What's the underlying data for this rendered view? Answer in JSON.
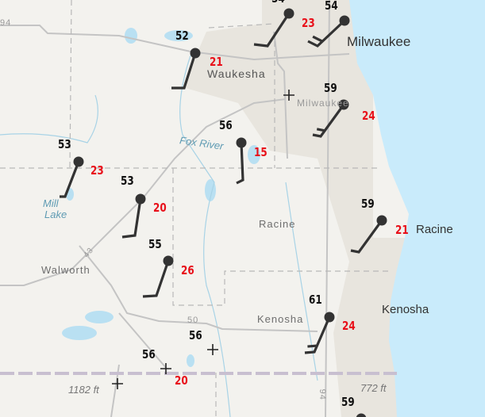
{
  "colors": {
    "land": "#f3f2ee",
    "urban": "#e6e3dc",
    "lake": "#c9ebfb",
    "temperature": "#111111",
    "dewpoint": "#e8101a",
    "barb": "#333333"
  },
  "places": [
    {
      "text": "Milwaukee",
      "kind": "city"
    },
    {
      "text": "Waukesha",
      "kind": "county"
    },
    {
      "text": "Milwaukee",
      "kind": "county"
    },
    {
      "text": "Fox River",
      "kind": "water"
    },
    {
      "text": "Mill",
      "kind": "water"
    },
    {
      "text": "Lake",
      "kind": "water"
    },
    {
      "text": "Racine",
      "kind": "county"
    },
    {
      "text": "Racine",
      "kind": "city"
    },
    {
      "text": "Walworth",
      "kind": "county"
    },
    {
      "text": "Kenosha",
      "kind": "county"
    },
    {
      "text": "Kenosha",
      "kind": "city"
    },
    {
      "text": "50",
      "kind": "road"
    },
    {
      "text": "94",
      "kind": "road"
    },
    {
      "text": "94",
      "kind": "road"
    },
    {
      "text": "43",
      "kind": "road"
    },
    {
      "text": "1182 ft",
      "kind": "elevation"
    },
    {
      "text": "772 ft",
      "kind": "elevation"
    }
  ],
  "stations": [
    {
      "temp": "54",
      "dew": "23"
    },
    {
      "temp": "54",
      "dew": ""
    },
    {
      "temp": "52",
      "dew": "21"
    },
    {
      "temp": "59",
      "dew": "24"
    },
    {
      "temp": "56",
      "dew": "15"
    },
    {
      "temp": "53",
      "dew": "23"
    },
    {
      "temp": "53",
      "dew": "20"
    },
    {
      "temp": "55",
      "dew": "26"
    },
    {
      "temp": "59",
      "dew": "21"
    },
    {
      "temp": "61",
      "dew": "24"
    },
    {
      "temp": "56",
      "dew": ""
    },
    {
      "temp": "56",
      "dew": "20"
    },
    {
      "temp": "59",
      "dew": ""
    }
  ]
}
